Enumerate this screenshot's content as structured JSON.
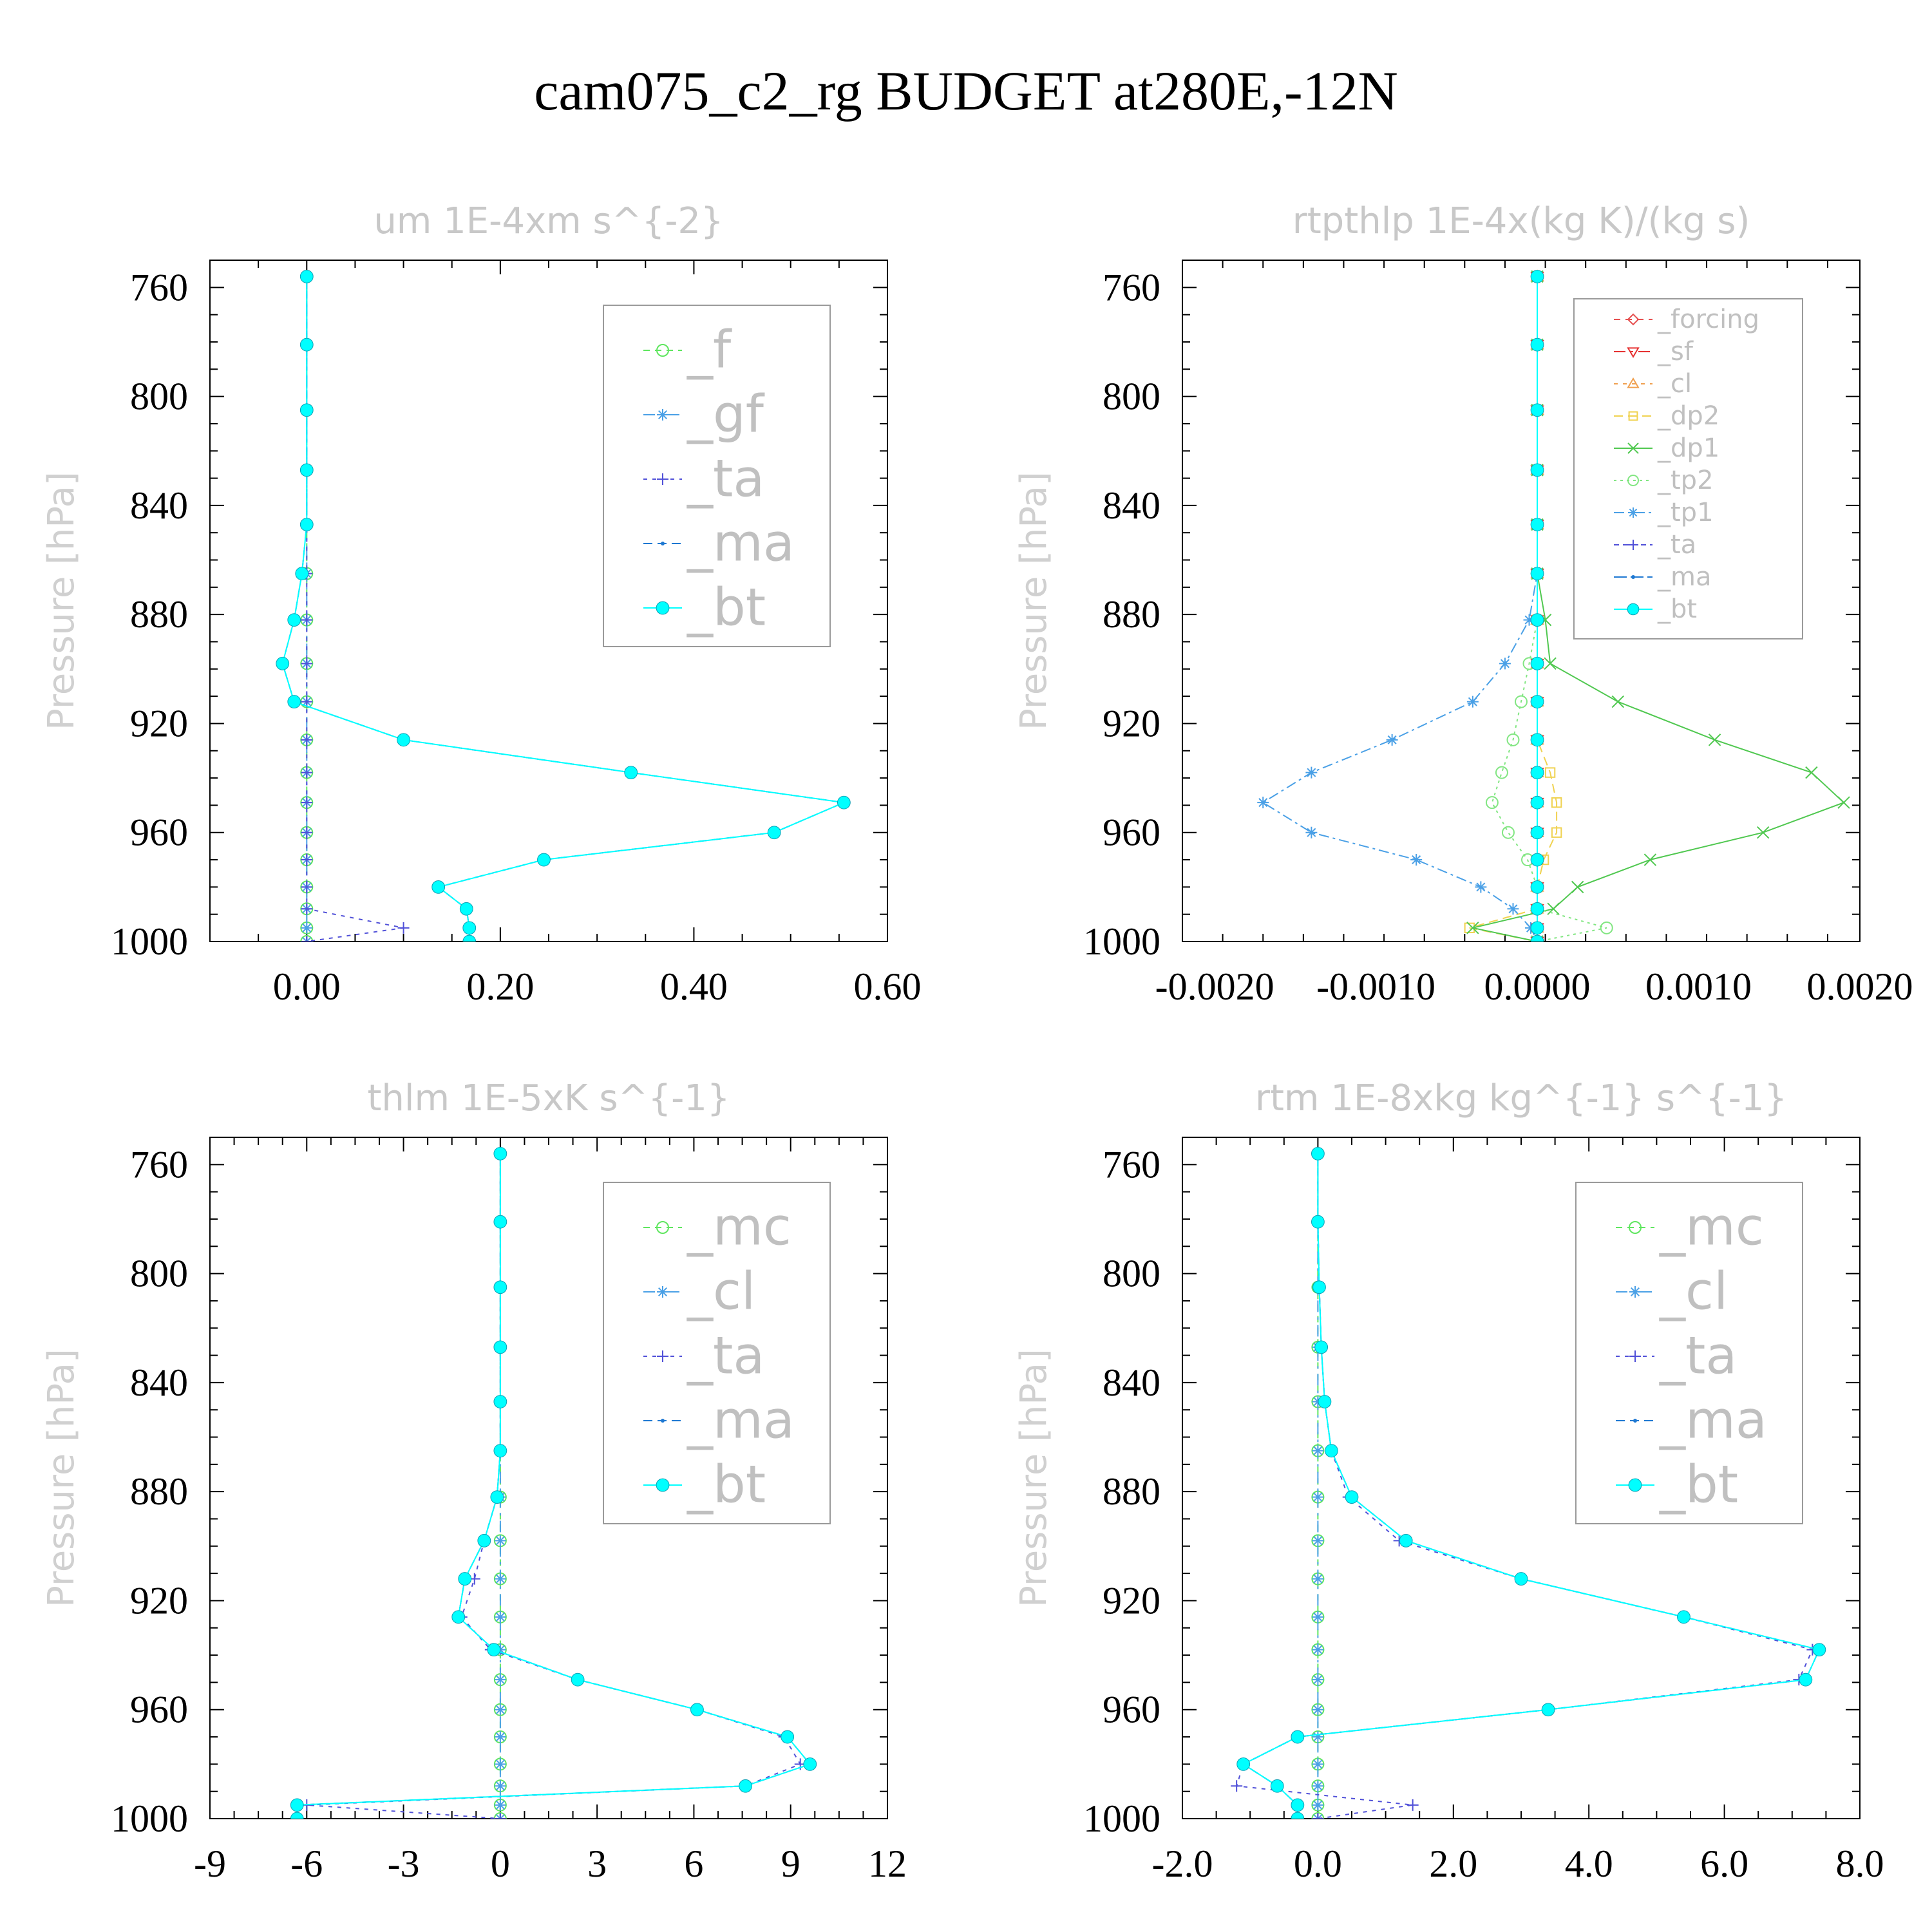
{
  "title": "cam075_c2_rg  BUDGET at280E,-12N",
  "chart_data": [
    {
      "type": "line",
      "title": "um  1E-4xm s^{-2}",
      "ylabel": "Pressure [hPa]",
      "xlim": [
        -0.1,
        0.6
      ],
      "ylim": [
        1000,
        750
      ],
      "xticks": [
        "0.00",
        "0.20",
        "0.40",
        "0.60"
      ],
      "xtick_values": [
        0,
        0.2,
        0.4,
        0.6
      ],
      "yticks": [
        760,
        800,
        840,
        880,
        920,
        960,
        1000
      ],
      "legend_position": "top-right",
      "legend_size": "large",
      "levels": [
        756,
        781,
        805,
        827,
        847,
        865,
        882,
        898,
        912,
        926,
        938,
        949,
        960,
        970,
        980,
        988,
        995,
        1000
      ],
      "series": [
        {
          "name": "_f",
          "color": "#5fe65f",
          "marker": "circle",
          "values": [
            0,
            0,
            0,
            0,
            0,
            0,
            0,
            0,
            0,
            0,
            0,
            0,
            0,
            0,
            0,
            0,
            0,
            0
          ]
        },
        {
          "name": "_gf",
          "color": "#4aa0e6",
          "marker": "star",
          "values": [
            0,
            0,
            0,
            0,
            0,
            0,
            0,
            0,
            0,
            0,
            0,
            0,
            0,
            0,
            0,
            0,
            0,
            0
          ]
        },
        {
          "name": "_ta",
          "color": "#5050d8",
          "marker": "plus",
          "values": [
            0,
            0,
            0,
            0,
            0,
            0,
            0,
            0,
            0,
            0,
            0,
            0,
            0,
            0,
            0,
            0,
            0.1,
            0
          ]
        },
        {
          "name": "_ma",
          "color": "#1e78d2",
          "marker": "dot",
          "values": [
            0,
            0,
            0,
            0,
            0,
            -0.005,
            -0.013,
            -0.025,
            -0.013,
            0.1,
            0.335,
            0.555,
            0.483,
            0.245,
            0.136,
            0.165,
            0.168,
            0.168
          ]
        },
        {
          "name": "_bt",
          "color": "#00ffff",
          "marker": "filled-circle",
          "values": [
            0,
            0,
            0,
            0,
            0,
            -0.005,
            -0.013,
            -0.025,
            -0.013,
            0.1,
            0.335,
            0.555,
            0.483,
            0.245,
            0.136,
            0.165,
            0.168,
            0.168
          ]
        }
      ]
    },
    {
      "type": "line",
      "title": "rtpthlp  1E-4x(kg K)/(kg s)",
      "ylabel": "Pressure [hPa]",
      "xlim": [
        -0.0022,
        0.002
      ],
      "ylim": [
        1000,
        750
      ],
      "xticks": [
        "-0.0020",
        "-0.0010",
        "0.0000",
        "0.0010",
        "0.0020"
      ],
      "xtick_values": [
        -0.002,
        -0.001,
        0,
        0.001,
        0.002
      ],
      "yticks": [
        760,
        800,
        840,
        880,
        920,
        960,
        1000
      ],
      "legend_position": "top-right",
      "legend_size": "small",
      "levels": [
        756,
        781,
        805,
        827,
        847,
        865,
        882,
        898,
        912,
        926,
        938,
        949,
        960,
        970,
        980,
        988,
        995,
        1000
      ],
      "series": [
        {
          "name": "_forcing",
          "color": "#e65050",
          "marker": "diamond",
          "values": [
            0,
            0,
            0,
            0,
            0,
            0,
            0,
            0,
            0,
            0,
            0,
            0,
            0,
            0,
            0,
            0,
            0,
            0
          ]
        },
        {
          "name": "_sf",
          "color": "#e63232",
          "marker": "tri-down",
          "values": [
            0,
            0,
            0,
            0,
            0,
            0,
            0,
            0,
            0,
            0,
            0,
            0,
            0,
            0,
            0,
            0,
            0,
            0
          ]
        },
        {
          "name": "_cl",
          "color": "#f0a050",
          "marker": "tri-up",
          "values": [
            0,
            0,
            0,
            0,
            0,
            0,
            0,
            0,
            0,
            0,
            0,
            0,
            0,
            0,
            0,
            0,
            0,
            0
          ]
        },
        {
          "name": "_dp2",
          "color": "#f0d250",
          "marker": "square",
          "values": [
            0,
            0,
            0,
            0,
            0,
            0,
            0,
            0,
            0,
            0,
            8e-05,
            0.00012,
            0.00012,
            4e-05,
            0,
            0,
            -0.00042,
            0
          ]
        },
        {
          "name": "_dp1",
          "color": "#50c850",
          "marker": "x",
          "values": [
            0,
            0,
            0,
            0,
            0,
            0,
            5e-05,
            8e-05,
            0.0005,
            0.0011,
            0.0017,
            0.0019,
            0.0014,
            0.0007,
            0.00025,
            0.0001,
            -0.0004,
            0
          ]
        },
        {
          "name": "_tp2",
          "color": "#82e682",
          "marker": "circle",
          "values": [
            0,
            0,
            0,
            0,
            0,
            0,
            0,
            -5e-05,
            -0.0001,
            -0.00015,
            -0.00022,
            -0.00028,
            -0.00018,
            -6e-05,
            0,
            0,
            0.00043,
            0
          ]
        },
        {
          "name": "_tp1",
          "color": "#4aa0e6",
          "marker": "star",
          "values": [
            0,
            0,
            0,
            0,
            0,
            0,
            -5e-05,
            -0.0002,
            -0.0004,
            -0.0009,
            -0.0014,
            -0.0017,
            -0.0014,
            -0.00075,
            -0.00035,
            -0.00015,
            -4e-05,
            0
          ]
        },
        {
          "name": "_ta",
          "color": "#5050d8",
          "marker": "plus",
          "values": [
            0,
            0,
            0,
            0,
            0,
            0,
            0,
            0,
            0,
            0,
            0,
            0,
            0,
            0,
            0,
            0,
            0,
            0
          ]
        },
        {
          "name": "_ma",
          "color": "#1e78d2",
          "marker": "dot",
          "values": [
            0,
            0,
            0,
            0,
            0,
            0,
            0,
            0,
            0,
            0,
            0,
            0,
            0,
            0,
            0,
            0,
            0,
            0
          ]
        },
        {
          "name": "_bt",
          "color": "#00ffff",
          "marker": "filled-circle",
          "values": [
            0,
            0,
            0,
            0,
            0,
            0,
            0,
            0,
            0,
            0,
            0,
            0,
            0,
            0,
            0,
            0,
            0,
            0
          ]
        }
      ]
    },
    {
      "type": "line",
      "title": "thlm  1E-5xK s^{-1}",
      "ylabel": "Pressure [hPa]",
      "xlim": [
        -9,
        12
      ],
      "ylim": [
        1000,
        750
      ],
      "xticks": [
        "-9",
        "-6",
        "-3",
        "0",
        "3",
        "6",
        "9",
        "12"
      ],
      "xtick_values": [
        -9,
        -6,
        -3,
        0,
        3,
        6,
        9,
        12
      ],
      "yticks": [
        760,
        800,
        840,
        880,
        920,
        960,
        1000
      ],
      "legend_position": "top-right",
      "legend_size": "large",
      "levels": [
        756,
        781,
        805,
        827,
        847,
        865,
        882,
        898,
        912,
        926,
        938,
        949,
        960,
        970,
        980,
        988,
        995,
        1000
      ],
      "series": [
        {
          "name": "_mc",
          "color": "#5fe65f",
          "marker": "circle",
          "values": [
            0,
            0,
            0,
            0,
            0,
            0,
            0,
            0,
            0,
            0,
            0,
            0,
            0,
            0,
            0,
            0,
            0,
            0
          ]
        },
        {
          "name": "_cl",
          "color": "#4aa0e6",
          "marker": "star",
          "values": [
            0,
            0,
            0,
            0,
            0,
            0,
            0,
            0,
            0,
            0,
            0,
            0,
            0,
            0,
            0,
            0,
            0,
            0
          ]
        },
        {
          "name": "_ta",
          "color": "#5050d8",
          "marker": "plus",
          "values": [
            0,
            0,
            0,
            0,
            0,
            0,
            -0.1,
            -0.5,
            -0.8,
            -1.2,
            -0.3,
            2.4,
            6.1,
            8.8,
            9.3,
            7.6,
            -6.0,
            0
          ]
        },
        {
          "name": "_ma",
          "color": "#1e78d2",
          "marker": "dot",
          "values": [
            0,
            0,
            0,
            0,
            0,
            0,
            -0.1,
            -0.5,
            -1.1,
            -1.3,
            -0.2,
            2.4,
            6.1,
            8.9,
            9.6,
            7.6,
            -6.3,
            -6.3
          ]
        },
        {
          "name": "_bt",
          "color": "#00ffff",
          "marker": "filled-circle",
          "values": [
            0,
            0,
            0,
            0,
            0,
            0,
            -0.1,
            -0.5,
            -1.1,
            -1.3,
            -0.2,
            2.4,
            6.1,
            8.9,
            9.6,
            7.6,
            -6.3,
            -6.3
          ]
        }
      ]
    },
    {
      "type": "line",
      "title": "rtm  1E-8xkg kg^{-1} s^{-1}",
      "ylabel": "Pressure [hPa]",
      "xlim": [
        -2.0,
        8.0
      ],
      "ylim": [
        1000,
        750
      ],
      "xticks": [
        "-2.0",
        "0.0",
        "2.0",
        "4.0",
        "6.0",
        "8.0"
      ],
      "xtick_values": [
        -2,
        0,
        2,
        4,
        6,
        8
      ],
      "yticks": [
        760,
        800,
        840,
        880,
        920,
        960,
        1000
      ],
      "legend_position": "top-right",
      "legend_size": "large",
      "levels": [
        756,
        781,
        805,
        827,
        847,
        865,
        882,
        898,
        912,
        926,
        938,
        949,
        960,
        970,
        980,
        988,
        995,
        1000
      ],
      "series": [
        {
          "name": "_mc",
          "color": "#5fe65f",
          "marker": "circle",
          "values": [
            0,
            0,
            0,
            0,
            0,
            0,
            0,
            0,
            0,
            0,
            0,
            0,
            0,
            0,
            0,
            0,
            0,
            0
          ]
        },
        {
          "name": "_cl",
          "color": "#4aa0e6",
          "marker": "star",
          "values": [
            0,
            0,
            0,
            0,
            0,
            0,
            0,
            0,
            0,
            0,
            0,
            0,
            0,
            0,
            0,
            0,
            0,
            0
          ]
        },
        {
          "name": "_ta",
          "color": "#5050d8",
          "marker": "plus",
          "values": [
            0,
            0,
            0.02,
            0.05,
            0.1,
            0.2,
            0.45,
            1.2,
            3.0,
            5.4,
            7.3,
            7.1,
            3.4,
            -0.3,
            -1.1,
            -1.2,
            1.4,
            0
          ]
        },
        {
          "name": "_ma",
          "color": "#1e78d2",
          "marker": "dot",
          "values": [
            0,
            0,
            0.02,
            0.05,
            0.1,
            0.2,
            0.5,
            1.3,
            3.0,
            5.4,
            7.4,
            7.2,
            3.4,
            -0.3,
            -1.1,
            -0.6,
            -0.3,
            -0.3
          ]
        },
        {
          "name": "_bt",
          "color": "#00ffff",
          "marker": "filled-circle",
          "values": [
            0,
            0,
            0.02,
            0.05,
            0.1,
            0.2,
            0.5,
            1.3,
            3.0,
            5.4,
            7.4,
            7.2,
            3.4,
            -0.3,
            -1.1,
            -0.6,
            -0.3,
            -0.3
          ]
        }
      ]
    }
  ]
}
